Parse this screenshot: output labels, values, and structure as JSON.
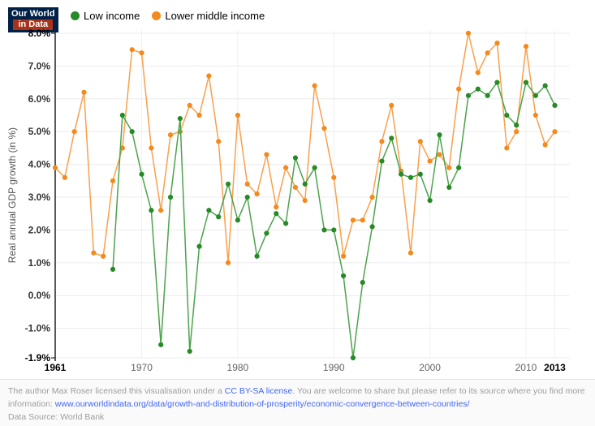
{
  "logo": {
    "line1": "Our World",
    "line2": "in Data",
    "bg_color": "#002147",
    "accent_color": "#a8321a"
  },
  "legend": [
    {
      "label": "Low income",
      "color": "#268a26"
    },
    {
      "label": "Lower middle income",
      "color": "#f28a1d"
    }
  ],
  "footer": {
    "text1": "The author Max Roser licensed this visualisation under a ",
    "link1": "CC BY-SA license",
    "text2": ". You are welcome to share but please refer to its source where you find more information: ",
    "link2": "www.ourworldindata.org/data/growth-and-distribution-of-prosperity/economic-convergence-between-countries/",
    "datasource": "Data Source: World Bank"
  },
  "chart_data": {
    "type": "line",
    "title": "",
    "xlabel": "",
    "ylabel": "Real annual GDP growth (in %)",
    "ylim": [
      -1.9,
      8.0
    ],
    "grid": true,
    "legend_position": "top-left",
    "x": [
      1961,
      1962,
      1963,
      1964,
      1965,
      1966,
      1967,
      1968,
      1969,
      1970,
      1971,
      1972,
      1973,
      1974,
      1975,
      1976,
      1977,
      1978,
      1979,
      1980,
      1981,
      1982,
      1983,
      1984,
      1985,
      1986,
      1987,
      1988,
      1989,
      1990,
      1991,
      1992,
      1993,
      1994,
      1995,
      1996,
      1997,
      1998,
      1999,
      2000,
      2001,
      2002,
      2003,
      2004,
      2005,
      2006,
      2007,
      2008,
      2009,
      2010,
      2011,
      2012,
      2013
    ],
    "series": [
      {
        "name": "Lower middle income",
        "line_color": "#f9a04c",
        "dot_color": "#f28a1d",
        "values": [
          3.9,
          3.6,
          5.0,
          6.2,
          1.3,
          1.2,
          3.5,
          4.5,
          7.5,
          7.4,
          4.5,
          2.6,
          4.9,
          5.0,
          5.8,
          5.5,
          6.7,
          4.7,
          1.0,
          5.5,
          3.4,
          3.1,
          4.3,
          2.7,
          3.9,
          3.3,
          2.9,
          6.4,
          5.1,
          3.6,
          1.2,
          2.3,
          2.3,
          3.0,
          4.7,
          5.8,
          3.8,
          1.3,
          4.7,
          4.1,
          4.3,
          3.9,
          6.3,
          8.0,
          6.8,
          7.4,
          7.7,
          4.5,
          5.0,
          7.6,
          5.5,
          4.6,
          5.0
        ]
      },
      {
        "name": "Low income",
        "line_color": "#4ca34c",
        "dot_color": "#268a26",
        "values": [
          null,
          null,
          null,
          null,
          null,
          null,
          0.8,
          5.5,
          5.0,
          3.7,
          2.6,
          -1.5,
          3.0,
          5.4,
          -1.7,
          1.5,
          2.6,
          2.4,
          3.4,
          2.3,
          3.0,
          1.2,
          1.9,
          2.5,
          2.2,
          4.2,
          3.4,
          3.9,
          2.0,
          2.0,
          0.6,
          -1.9,
          0.4,
          2.1,
          4.1,
          4.8,
          3.7,
          3.6,
          3.7,
          2.9,
          4.9,
          3.3,
          3.9,
          6.1,
          6.3,
          6.1,
          6.5,
          5.5,
          5.2,
          6.5,
          6.1,
          6.4,
          5.8
        ]
      }
    ],
    "y_ticks": [
      {
        "label": "8.0%",
        "value": 8.0,
        "bold": true
      },
      {
        "label": "7.0%",
        "value": 7.0,
        "bold": false
      },
      {
        "label": "6.0%",
        "value": 6.0,
        "bold": false
      },
      {
        "label": "5.0%",
        "value": 5.0,
        "bold": false
      },
      {
        "label": "4.0%",
        "value": 4.0,
        "bold": false
      },
      {
        "label": "3.0%",
        "value": 3.0,
        "bold": false
      },
      {
        "label": "2.0%",
        "value": 2.0,
        "bold": false
      },
      {
        "label": "1.0%",
        "value": 1.0,
        "bold": false
      },
      {
        "label": "0.0%",
        "value": 0.0,
        "bold": false
      },
      {
        "label": "-1.0%",
        "value": -1.0,
        "bold": false
      },
      {
        "label": "-1.9%",
        "value": -1.9,
        "bold": true
      }
    ],
    "x_ticks": [
      {
        "label": "1961",
        "year": 1961,
        "bold": true
      },
      {
        "label": "1970",
        "year": 1970,
        "bold": false
      },
      {
        "label": "1980",
        "year": 1980,
        "bold": false
      },
      {
        "label": "1990",
        "year": 1990,
        "bold": false
      },
      {
        "label": "2000",
        "year": 2000,
        "bold": false
      },
      {
        "label": "2010",
        "year": 2010,
        "bold": false
      },
      {
        "label": "2013",
        "year": 2013,
        "bold": true
      }
    ]
  }
}
